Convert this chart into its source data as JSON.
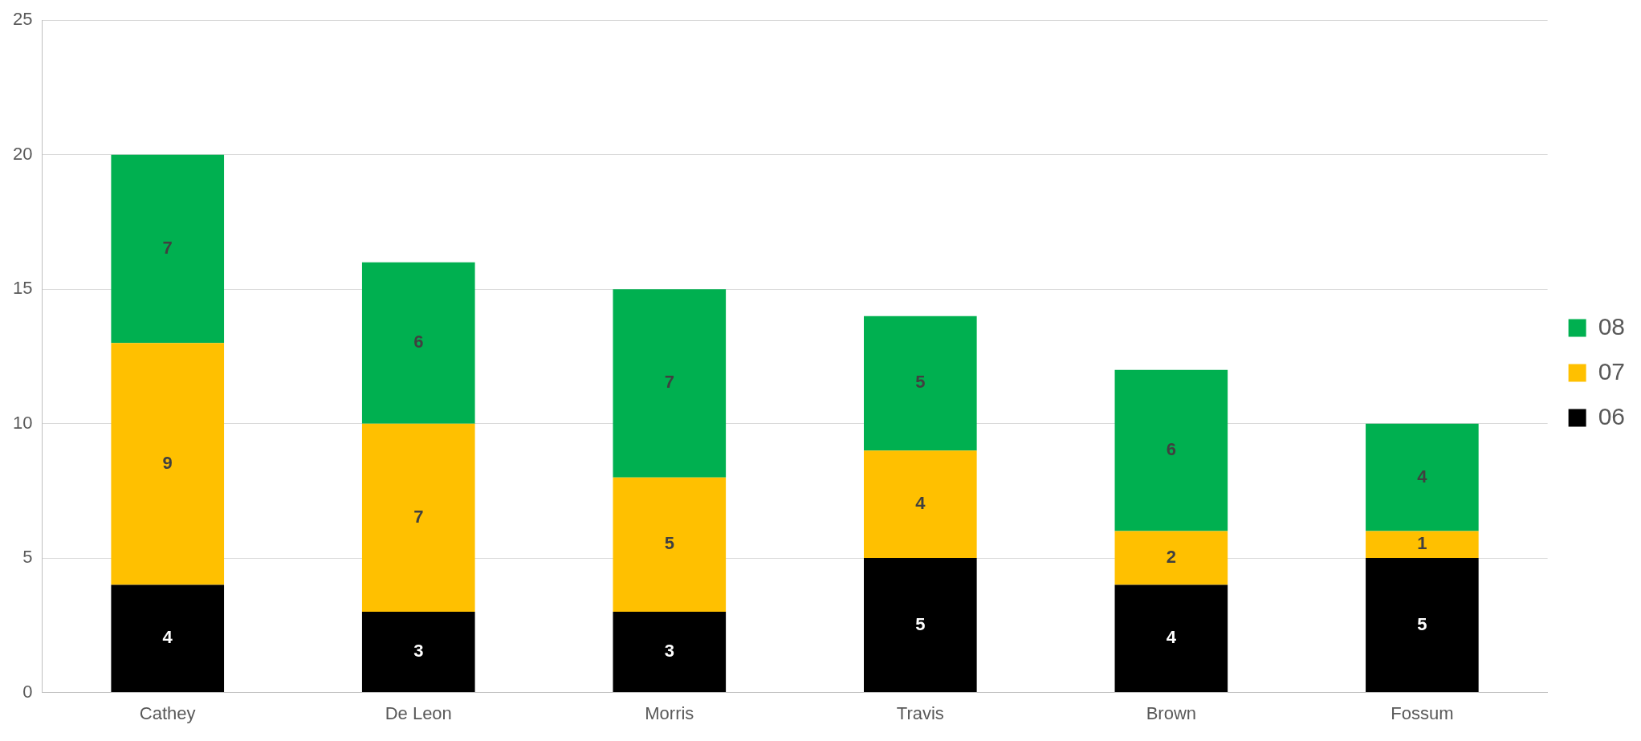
{
  "chart_data": {
    "type": "bar",
    "stacked": true,
    "categories": [
      "Cathey",
      "De Leon",
      "Morris",
      "Travis",
      "Brown",
      "Fossum"
    ],
    "series": [
      {
        "name": "06",
        "color": "#000000",
        "values": [
          4,
          3,
          3,
          5,
          4,
          5
        ]
      },
      {
        "name": "07",
        "color": "#ffc000",
        "values": [
          9,
          7,
          5,
          4,
          2,
          1
        ]
      },
      {
        "name": "08",
        "color": "#00b050",
        "values": [
          7,
          6,
          7,
          5,
          6,
          4
        ]
      }
    ],
    "ylim": [
      0,
      25
    ],
    "yticks": [
      0,
      5,
      10,
      15,
      20,
      25
    ],
    "grid": "y",
    "legend": "right",
    "data_labels": true
  }
}
